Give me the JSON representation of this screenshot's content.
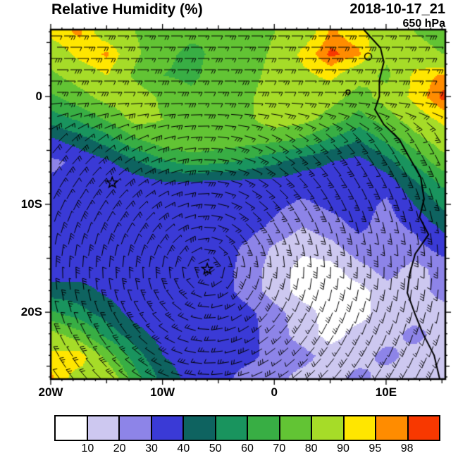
{
  "header": {
    "title": "Relative Humidity (%)",
    "datetime": "2018-10-17_21",
    "level": "650 hPa"
  },
  "axes": {
    "lon_min": -20,
    "lon_max": 15.3,
    "lat_min": -26.2,
    "lat_max": 6.2,
    "y_ticks": [
      {
        "label": "0",
        "lat": 0
      },
      {
        "label": "10S",
        "lat": -10
      },
      {
        "label": "20S",
        "lat": -20
      }
    ],
    "x_ticks": [
      {
        "label": "20W",
        "lon": -20
      },
      {
        "label": "10W",
        "lon": -10
      },
      {
        "label": "0",
        "lon": 0
      },
      {
        "label": "10E",
        "lon": 10
      }
    ]
  },
  "colorbar": {
    "levels": [
      10,
      20,
      30,
      40,
      50,
      60,
      70,
      80,
      90,
      95,
      98
    ],
    "colors": [
      "#ffffff",
      "#cdc8f0",
      "#8d84e8",
      "#3a3ad6",
      "#0e6360",
      "#19945e",
      "#38ae44",
      "#62c434",
      "#a6dc28",
      "#ffe600",
      "#ff8c00",
      "#f83800"
    ]
  },
  "chart_data": {
    "type": "heatmap",
    "title": "Relative Humidity (%)",
    "units": "%",
    "valid_time": "2018-10-17_21",
    "pressure_level": "650 hPa",
    "lon": [
      -20,
      -17.5,
      -15,
      -12.5,
      -10,
      -7.5,
      -5,
      -2.5,
      0,
      2.5,
      5,
      7.5,
      10,
      12.5,
      15
    ],
    "lat": [
      6,
      4,
      2,
      0,
      -2,
      -4,
      -6,
      -8,
      -10,
      -12,
      -14,
      -16,
      -18,
      -20,
      -22,
      -24,
      -26
    ],
    "rh": [
      [
        92,
        96,
        85,
        80,
        75,
        72,
        70,
        75,
        80,
        85,
        96,
        92,
        85,
        80,
        75
      ],
      [
        85,
        92,
        96,
        82,
        72,
        68,
        72,
        75,
        82,
        92,
        99,
        96,
        82,
        85,
        80
      ],
      [
        78,
        85,
        90,
        78,
        70,
        68,
        74,
        76,
        84,
        88,
        92,
        84,
        78,
        92,
        96
      ],
      [
        68,
        76,
        84,
        86,
        78,
        72,
        76,
        78,
        86,
        86,
        84,
        76,
        84,
        92,
        99
      ],
      [
        55,
        62,
        72,
        84,
        80,
        78,
        78,
        78,
        86,
        84,
        76,
        66,
        76,
        86,
        92
      ],
      [
        38,
        45,
        55,
        68,
        76,
        78,
        76,
        74,
        72,
        68,
        58,
        50,
        62,
        76,
        85
      ],
      [
        28,
        32,
        38,
        48,
        58,
        64,
        62,
        58,
        52,
        44,
        40,
        36,
        46,
        62,
        76
      ],
      [
        32,
        32,
        30,
        34,
        38,
        38,
        36,
        36,
        36,
        34,
        36,
        32,
        34,
        48,
        62
      ],
      [
        34,
        34,
        32,
        35,
        36,
        36,
        35,
        35,
        32,
        28,
        32,
        34,
        28,
        40,
        52
      ],
      [
        34,
        34,
        33,
        35,
        35,
        35,
        35,
        34,
        28,
        20,
        26,
        32,
        26,
        32,
        42
      ],
      [
        32,
        33,
        34,
        35,
        35,
        35,
        35,
        28,
        18,
        12,
        16,
        26,
        26,
        26,
        34
      ],
      [
        34,
        35,
        35,
        35,
        35,
        35,
        35,
        26,
        15,
        6,
        6,
        16,
        24,
        16,
        24
      ],
      [
        45,
        44,
        38,
        35,
        35,
        35,
        35,
        26,
        15,
        6,
        5,
        6,
        16,
        15,
        24
      ],
      [
        62,
        54,
        45,
        36,
        35,
        34,
        35,
        33,
        24,
        14,
        6,
        6,
        15,
        15,
        15
      ],
      [
        84,
        74,
        56,
        44,
        36,
        34,
        34,
        34,
        25,
        15,
        6,
        14,
        15,
        24,
        15
      ],
      [
        92,
        95,
        76,
        55,
        40,
        35,
        34,
        33,
        26,
        24,
        15,
        15,
        24,
        15,
        15
      ],
      [
        96,
        86,
        90,
        64,
        46,
        36,
        34,
        26,
        24,
        16,
        15,
        24,
        15,
        15,
        15
      ]
    ],
    "levels": [
      10,
      20,
      30,
      40,
      50,
      60,
      70,
      80,
      90,
      95,
      98
    ],
    "colors": [
      "#ffffff",
      "#cdc8f0",
      "#8d84e8",
      "#3a3ad6",
      "#0e6360",
      "#19945e",
      "#38ae44",
      "#62c434",
      "#a6dc28",
      "#ffe600",
      "#ff8c00",
      "#f83800"
    ],
    "stars": [
      {
        "lon": -14.5,
        "lat": -8
      },
      {
        "lon": -6,
        "lat": -16
      }
    ],
    "wind": {
      "style": "barbs",
      "typical_speed_kt": 10,
      "north_band_flow": "easterly",
      "circulation_center": {
        "lon": -6,
        "lat": -16
      },
      "circulation_sense": "counterclockwise"
    },
    "coastline": [
      [
        8.0,
        6.2
      ],
      [
        9.5,
        4.5
      ],
      [
        9.8,
        3.2
      ],
      [
        9.4,
        1.5
      ],
      [
        9.4,
        0.0
      ],
      [
        9.0,
        -1.2
      ],
      [
        9.8,
        -2.6
      ],
      [
        11.2,
        -4.0
      ],
      [
        12.0,
        -5.5
      ],
      [
        13.1,
        -7.5
      ],
      [
        13.4,
        -9.5
      ],
      [
        13.0,
        -11.2
      ],
      [
        13.8,
        -12.8
      ],
      [
        12.6,
        -14.6
      ],
      [
        12.1,
        -16.5
      ],
      [
        11.9,
        -18.2
      ],
      [
        12.6,
        -20.2
      ],
      [
        13.3,
        -22.0
      ],
      [
        14.3,
        -24.0
      ],
      [
        14.8,
        -26.2
      ]
    ],
    "islands": [
      {
        "lon": 8.4,
        "lat": 3.7,
        "r": 5
      },
      {
        "lon": 6.6,
        "lat": 0.4,
        "r": 3
      }
    ]
  }
}
